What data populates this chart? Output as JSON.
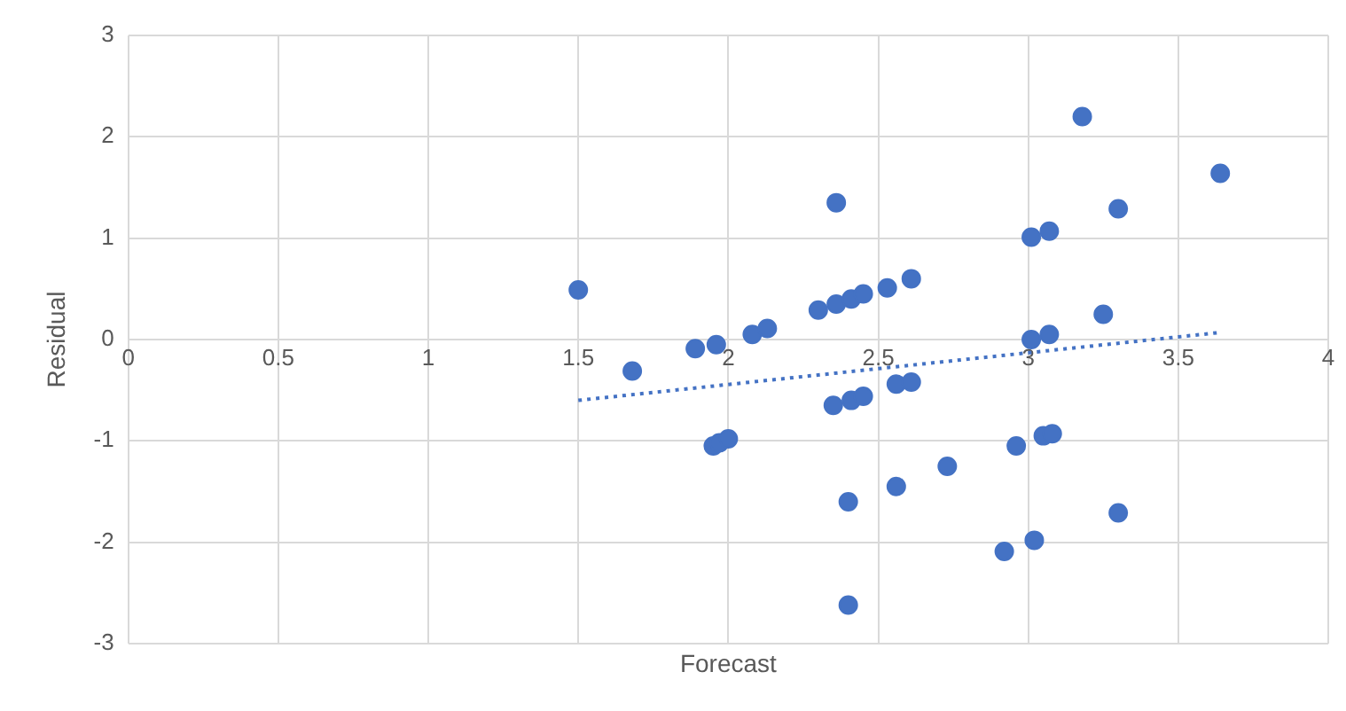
{
  "chart_data": {
    "type": "scatter",
    "xlabel": "Forecast",
    "ylabel": "Residual",
    "xlim": [
      0,
      4
    ],
    "xticks": [
      0,
      0.5,
      1,
      1.5,
      2,
      2.5,
      3,
      3.5,
      4
    ],
    "ylim": [
      -3,
      3
    ],
    "yticks": [
      -3,
      -2,
      -1,
      0,
      1,
      2,
      3
    ],
    "grid": true,
    "legend": false,
    "marker": "circle",
    "series": [
      {
        "color": "#4472c4",
        "x": [
          1.5,
          1.68,
          1.89,
          1.96,
          2.08,
          2.13,
          2.3,
          2.36,
          2.41,
          2.45,
          2.53,
          2.61,
          2.36,
          2.35,
          2.41,
          2.45,
          2.56,
          2.61,
          1.95,
          1.97,
          2.0,
          2.4,
          2.56,
          2.73,
          2.96,
          3.05,
          3.08,
          2.92,
          3.02,
          3.3,
          2.4,
          3.18,
          3.64,
          3.3,
          3.01,
          3.07,
          3.25,
          3.01,
          3.07
        ],
        "values": [
          0.49,
          -0.31,
          -0.09,
          -0.05,
          0.05,
          0.11,
          0.29,
          0.35,
          0.4,
          0.45,
          0.51,
          0.6,
          1.35,
          -0.65,
          -0.6,
          -0.56,
          -0.44,
          -0.42,
          -1.05,
          -1.02,
          -0.98,
          -1.6,
          -1.45,
          -1.25,
          -1.05,
          -0.95,
          -0.93,
          -2.09,
          -1.98,
          -1.71,
          -2.62,
          2.2,
          1.64,
          1.29,
          1.01,
          1.07,
          0.25,
          0.0,
          0.05
        ]
      },
      {
        "type": "line",
        "color": "#4472c4",
        "marker": "none",
        "line_style": "dotted",
        "x": [
          1.5,
          3.64
        ],
        "values": [
          -0.6,
          0.07
        ]
      }
    ]
  }
}
